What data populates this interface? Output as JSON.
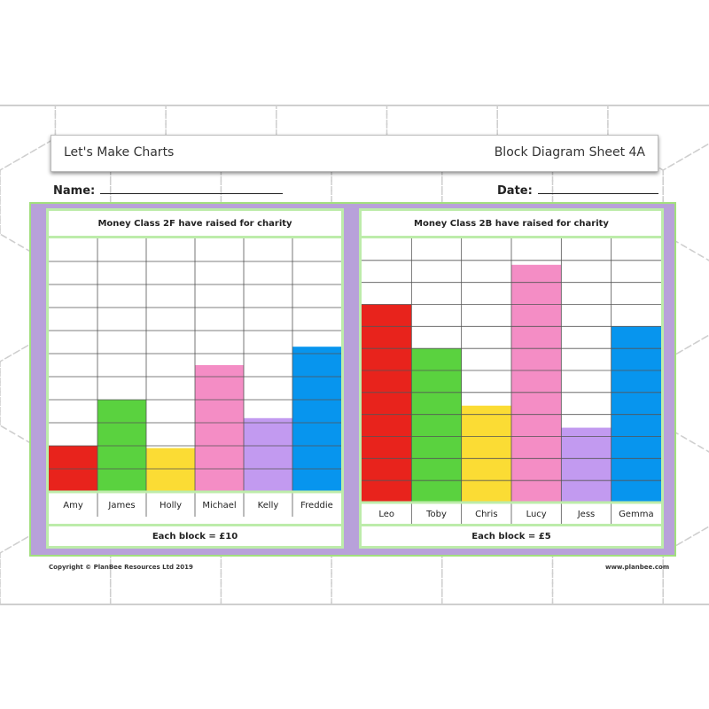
{
  "header": {
    "left_title": "Let's Make Charts",
    "right_title": "Block Diagram Sheet 4A"
  },
  "fields": {
    "name_label": "Name:",
    "date_label": "Date:"
  },
  "footer": {
    "copyright": "Copyright © PlanBee Resources Ltd 2019",
    "website": "www.planbee.com"
  },
  "chart_data": [
    {
      "type": "bar",
      "title": "Money Class 2F have raised for charity",
      "categories": [
        "Amy",
        "James",
        "Holly",
        "Michael",
        "Kelly",
        "Freddie"
      ],
      "values": [
        20,
        40,
        19,
        55,
        32,
        63
      ],
      "colors": [
        "#e8231c",
        "#5ad23f",
        "#fbdc34",
        "#f48dc5",
        "#c29af0",
        "#0795ee"
      ],
      "note": "Each block = £10",
      "block_value": 10,
      "rows": 11
    },
    {
      "type": "bar",
      "title": "Money Class 2B have raised for charity",
      "categories": [
        "Leo",
        "Toby",
        "Chris",
        "Lucy",
        "Jess",
        "Gemma"
      ],
      "values": [
        45,
        35,
        22,
        54,
        17,
        40
      ],
      "colors": [
        "#e8231c",
        "#5ad23f",
        "#fbdc34",
        "#f48dc5",
        "#c29af0",
        "#0795ee"
      ],
      "note": "Each block = £5",
      "block_value": 5,
      "rows": 12
    }
  ]
}
